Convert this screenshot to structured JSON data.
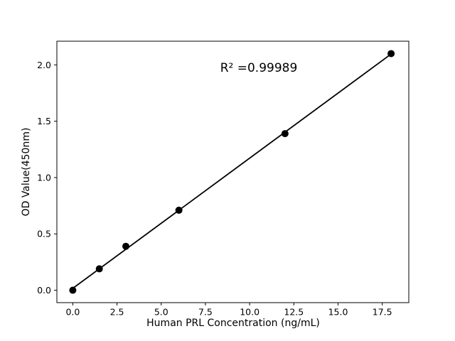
{
  "chart_data": {
    "type": "scatter",
    "title": "",
    "xlabel": "Human PRL Concentration (ng/mL)",
    "ylabel": "OD Value(450nm)",
    "annotation": {
      "text": "R² =0.99989"
    },
    "x": [
      0,
      1.5,
      3,
      6,
      12,
      18
    ],
    "y": [
      0.0,
      0.19,
      0.39,
      0.71,
      1.39,
      2.1
    ],
    "fit_line": {
      "x1": 0,
      "y1": 0.017,
      "x2": 18,
      "y2": 2.096
    },
    "xticks": [
      0.0,
      2.5,
      5.0,
      7.5,
      10.0,
      12.5,
      15.0,
      17.5
    ],
    "xtick_labels": [
      "0.0",
      "2.5",
      "5.0",
      "7.5",
      "10.0",
      "12.5",
      "15.0",
      "17.5"
    ],
    "yticks": [
      0.0,
      0.5,
      1.0,
      1.5,
      2.0
    ],
    "ytick_labels": [
      "0.0",
      "0.5",
      "1.0",
      "1.5",
      "2.0"
    ],
    "xlim": [
      -0.9,
      19.0
    ],
    "ylim": [
      -0.11,
      2.21
    ],
    "grid": false,
    "legend": "none",
    "marker_color": "#000000",
    "line_color": "#000000",
    "axis_color": "#000000",
    "background_color": "#ffffff",
    "marker_radius_px": 5
  }
}
